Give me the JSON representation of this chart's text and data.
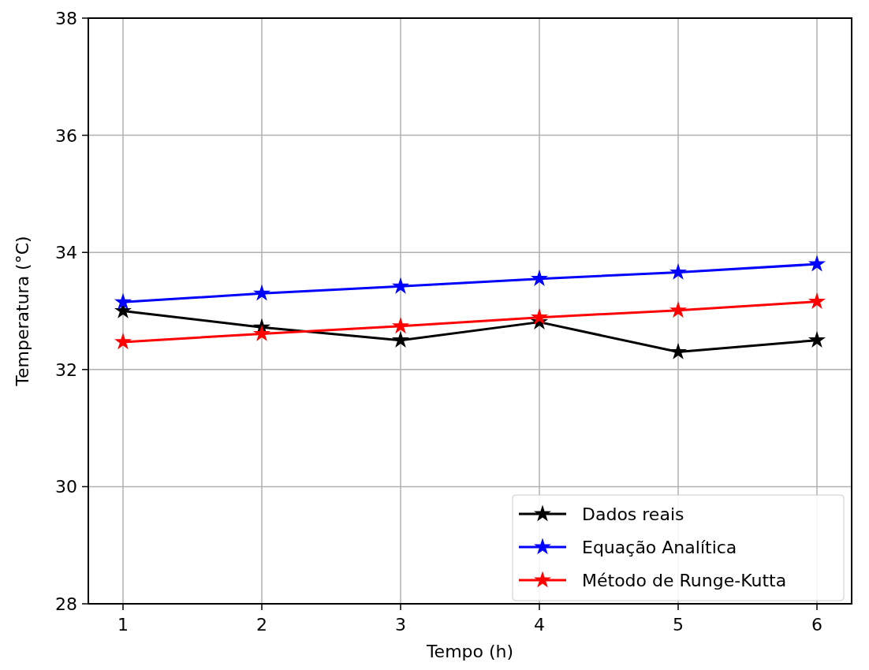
{
  "chart_data": {
    "type": "line",
    "xlabel": "Tempo (h)",
    "ylabel": "Temperatura (°C)",
    "x": [
      1,
      2,
      3,
      4,
      5,
      6
    ],
    "series": [
      {
        "name": "Dados reais",
        "color": "#000000",
        "values": [
          33.0,
          32.72,
          32.5,
          32.81,
          32.3,
          32.5
        ]
      },
      {
        "name": "Equação Analítica",
        "color": "#0000ff",
        "values": [
          33.15,
          33.3,
          33.42,
          33.55,
          33.66,
          33.8
        ]
      },
      {
        "name": "Método de Runge-Kutta",
        "color": "#ff0000",
        "values": [
          32.47,
          32.61,
          32.74,
          32.89,
          33.01,
          33.16
        ]
      }
    ],
    "xlim": [
      0.75,
      6.25
    ],
    "xticks": [
      1,
      2,
      3,
      4,
      5,
      6
    ],
    "ylim": [
      28,
      38
    ],
    "yticks": [
      28,
      30,
      32,
      34,
      36,
      38
    ],
    "grid": true,
    "legend": "bottom right",
    "marker": "star",
    "line_style": "solid"
  }
}
